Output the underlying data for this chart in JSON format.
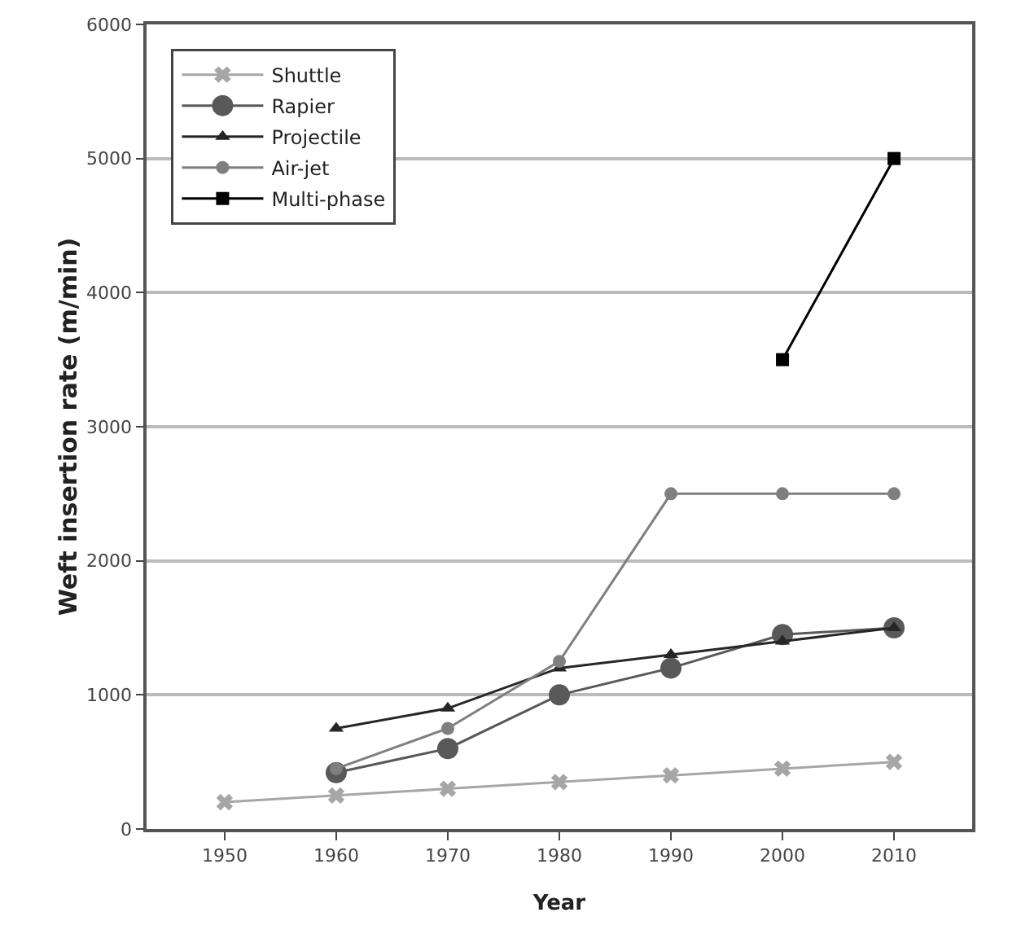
{
  "chart_data": {
    "type": "line",
    "xlabel": "Year",
    "ylabel": "Weft insertion rate (m/min)",
    "x": [
      1950,
      1960,
      1970,
      1980,
      1990,
      2000,
      2010
    ],
    "xlim": [
      1943,
      2017
    ],
    "xticks": [
      1950,
      1960,
      1970,
      1980,
      1990,
      2000,
      2010
    ],
    "ylim": [
      0,
      6000
    ],
    "yticks": [
      0,
      1000,
      2000,
      3000,
      4000,
      5000,
      6000
    ],
    "grid": "y",
    "legend": "top left",
    "line_style": "solid",
    "series": [
      {
        "name": "Shuttle",
        "color": "#a6a6a6",
        "marker": "cross",
        "values": [
          200,
          250,
          300,
          350,
          400,
          450,
          500
        ]
      },
      {
        "name": "Rapier",
        "color": "#595959",
        "marker": "circle",
        "values": [
          null,
          420,
          600,
          1000,
          1200,
          1450,
          1500
        ]
      },
      {
        "name": "Projectile",
        "color": "#262626",
        "marker": "triangle",
        "values": [
          null,
          750,
          900,
          1200,
          1300,
          1400,
          1500
        ]
      },
      {
        "name": "Air-jet",
        "color": "#7f7f7f",
        "marker": "circle",
        "values": [
          null,
          450,
          750,
          1250,
          2500,
          2500,
          2500
        ]
      },
      {
        "name": "Multi-phase",
        "color": "#000000",
        "marker": "square",
        "values": [
          null,
          null,
          null,
          null,
          null,
          3500,
          5000
        ]
      }
    ]
  }
}
